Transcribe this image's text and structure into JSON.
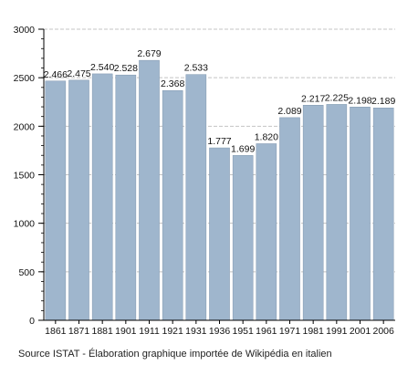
{
  "chart_data": {
    "type": "bar",
    "title": "",
    "xlabel": "",
    "ylabel": "",
    "categories": [
      "1861",
      "1871",
      "1881",
      "1901",
      "1911",
      "1921",
      "1931",
      "1936",
      "1951",
      "1961",
      "1971",
      "1981",
      "1991",
      "2001",
      "2006"
    ],
    "values": [
      2466,
      2475,
      2540,
      2528,
      2679,
      2368,
      2533,
      1777,
      1699,
      1820,
      2089,
      2217,
      2225,
      2198,
      2189
    ],
    "value_labels": [
      "2.466",
      "2.475",
      "2.540",
      "2.528",
      "2.679",
      "2.368",
      "2.533",
      "1.777",
      "1.699",
      "1.820",
      "2.089",
      "2.217",
      "2.225",
      "2.198",
      "2.189"
    ],
    "ylim": [
      0,
      3000
    ],
    "yticks": [
      0,
      500,
      1000,
      1500,
      2000,
      2500,
      3000
    ],
    "ytick_labels": [
      "0",
      "500",
      "1000",
      "1500",
      "2000",
      "2500",
      "3000"
    ],
    "minor_tick_step": 100,
    "grid": "horizontal dashed",
    "legend": "none",
    "colors": {
      "bar": "#9fb6cd",
      "bar_edge": "#7f96ad",
      "grid": "#c4c4c4",
      "axis": "#000000"
    }
  },
  "source": "Source ISTAT - Élaboration graphique importée de Wikipédia en italien"
}
